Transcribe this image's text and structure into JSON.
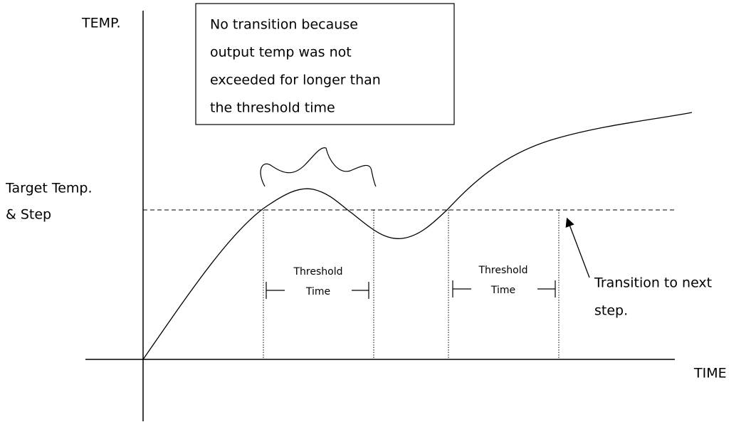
{
  "axes": {
    "y_label": "TEMP.",
    "x_label": "TIME"
  },
  "target_label": [
    "Target Temp.",
    "& Step"
  ],
  "note": [
    "No transition because",
    "output temp was not",
    "exceeded for longer than",
    "the threshold time"
  ],
  "thresholds": [
    {
      "label": [
        "Threshold",
        "Time"
      ]
    },
    {
      "label": [
        "Threshold",
        "Time"
      ]
    }
  ],
  "transition_label": [
    "Transition to next",
    "step."
  ]
}
